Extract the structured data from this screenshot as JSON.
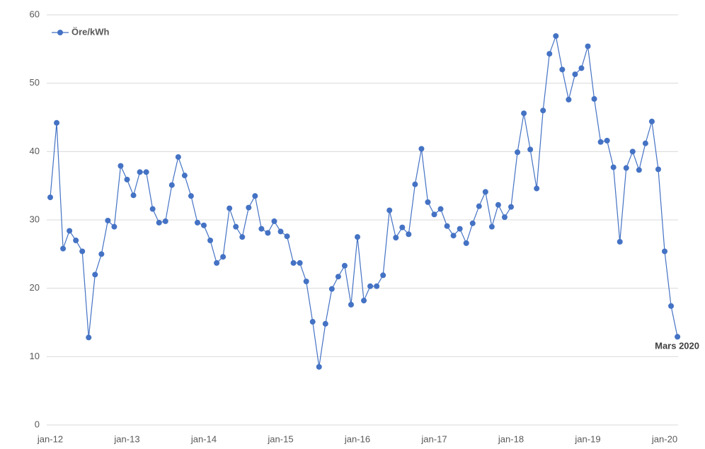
{
  "chart_data": {
    "type": "line",
    "categories": [
      "jan-12",
      null,
      null,
      null,
      null,
      null,
      null,
      null,
      null,
      null,
      null,
      null,
      "jan-13",
      null,
      null,
      null,
      null,
      null,
      null,
      null,
      null,
      null,
      null,
      null,
      "jan-14",
      null,
      null,
      null,
      null,
      null,
      null,
      null,
      null,
      null,
      null,
      null,
      "jan-15",
      null,
      null,
      null,
      null,
      null,
      null,
      null,
      null,
      null,
      null,
      null,
      "jan-16",
      null,
      null,
      null,
      null,
      null,
      null,
      null,
      null,
      null,
      null,
      null,
      "jan-17",
      null,
      null,
      null,
      null,
      null,
      null,
      null,
      null,
      null,
      null,
      null,
      "jan-18",
      null,
      null,
      null,
      null,
      null,
      null,
      null,
      null,
      null,
      null,
      null,
      "jan-19",
      null,
      null,
      null,
      null,
      null,
      null,
      null,
      null,
      null,
      null,
      null,
      "jan-20",
      null,
      null
    ],
    "series": [
      {
        "name": "Öre/kWh",
        "color": "#4472c4",
        "values": [
          33.3,
          44.2,
          25.8,
          28.4,
          27.0,
          25.4,
          12.8,
          22.0,
          25.0,
          29.9,
          29.0,
          37.9,
          35.9,
          33.6,
          37.0,
          37.0,
          31.6,
          29.6,
          29.8,
          35.1,
          39.2,
          36.5,
          33.5,
          29.6,
          29.2,
          27.0,
          23.7,
          24.6,
          31.7,
          29.0,
          27.5,
          31.8,
          33.5,
          28.7,
          28.1,
          29.8,
          28.3,
          27.6,
          23.7,
          23.7,
          21.0,
          15.1,
          8.5,
          14.8,
          19.9,
          21.7,
          23.3,
          17.6,
          27.5,
          18.2,
          20.3,
          20.3,
          21.9,
          31.4,
          27.4,
          28.9,
          27.9,
          35.2,
          40.4,
          32.6,
          30.8,
          31.6,
          29.1,
          27.7,
          28.7,
          26.6,
          29.5,
          32.0,
          34.1,
          29.0,
          32.2,
          30.4,
          31.9,
          39.9,
          45.6,
          40.3,
          34.6,
          46.0,
          54.3,
          56.9,
          52.0,
          47.6,
          51.3,
          52.2,
          55.4,
          47.7,
          41.4,
          41.6,
          37.7,
          26.8,
          37.6,
          40.0,
          37.3,
          41.2,
          44.4,
          37.4,
          25.4,
          17.4,
          12.9
        ]
      }
    ],
    "annotation": "Mars 2020",
    "ylim": [
      0,
      60
    ],
    "yticks": [
      0,
      10,
      20,
      30,
      40,
      50,
      60
    ],
    "grid": true,
    "legend": "top-left"
  }
}
